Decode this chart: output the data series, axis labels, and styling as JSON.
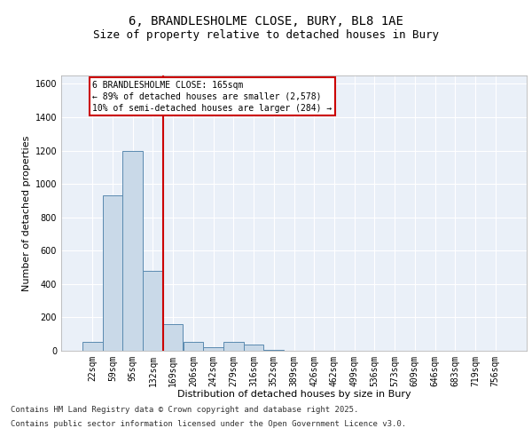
{
  "title_line1": "6, BRANDLESHOLME CLOSE, BURY, BL8 1AE",
  "title_line2": "Size of property relative to detached houses in Bury",
  "xlabel": "Distribution of detached houses by size in Bury",
  "ylabel": "Number of detached properties",
  "bar_color": "#c9d9e8",
  "bar_edge_color": "#5a8ab0",
  "categories": [
    "22sqm",
    "59sqm",
    "95sqm",
    "132sqm",
    "169sqm",
    "206sqm",
    "242sqm",
    "279sqm",
    "316sqm",
    "352sqm",
    "389sqm",
    "426sqm",
    "462sqm",
    "499sqm",
    "536sqm",
    "573sqm",
    "609sqm",
    "646sqm",
    "683sqm",
    "719sqm",
    "756sqm"
  ],
  "values": [
    55,
    930,
    1200,
    480,
    160,
    55,
    20,
    55,
    35,
    5,
    0,
    0,
    0,
    0,
    0,
    0,
    0,
    0,
    0,
    0,
    0
  ],
  "ylim": [
    0,
    1650
  ],
  "yticks": [
    0,
    200,
    400,
    600,
    800,
    1000,
    1200,
    1400,
    1600
  ],
  "vline_x": 3.5,
  "vline_color": "#cc0000",
  "annotation_title": "6 BRANDLESHOLME CLOSE: 165sqm",
  "annotation_line1": "← 89% of detached houses are smaller (2,578)",
  "annotation_line2": "10% of semi-detached houses are larger (284) →",
  "annotation_box_color": "#ffffff",
  "annotation_box_edge_color": "#cc0000",
  "footer_line1": "Contains HM Land Registry data © Crown copyright and database right 2025.",
  "footer_line2": "Contains public sector information licensed under the Open Government Licence v3.0.",
  "background_color": "#eaf0f8",
  "grid_color": "#ffffff",
  "fig_bg_color": "#ffffff",
  "title_fontsize": 10,
  "subtitle_fontsize": 9,
  "axis_label_fontsize": 8,
  "tick_fontsize": 7,
  "annotation_fontsize": 7,
  "footer_fontsize": 6.5
}
